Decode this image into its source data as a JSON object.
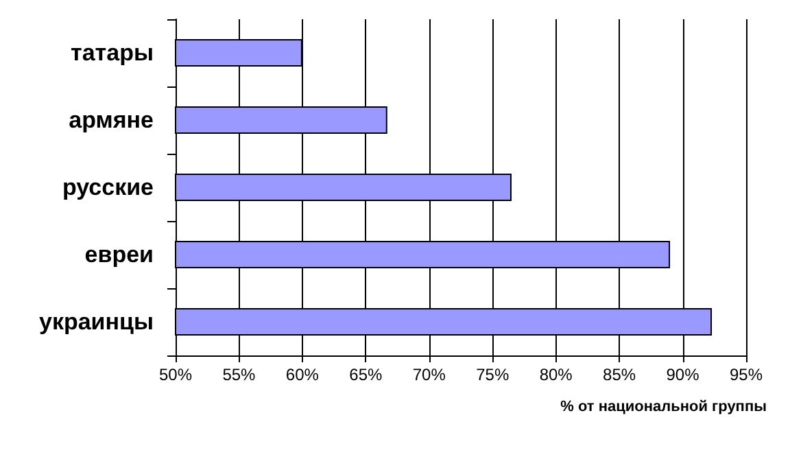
{
  "chart_data": {
    "type": "bar",
    "orientation": "horizontal",
    "categories": [
      "татары",
      "армяне",
      "русские",
      "евреи",
      "украинцы"
    ],
    "values": [
      60,
      66.7,
      76.5,
      89,
      92.3
    ],
    "color": "#9999ff",
    "xlim": [
      50,
      95
    ],
    "xticks": [
      {
        "value": 50,
        "label": "50%"
      },
      {
        "value": 55,
        "label": "55%"
      },
      {
        "value": 60,
        "label": "60%"
      },
      {
        "value": 65,
        "label": "65%"
      },
      {
        "value": 70,
        "label": "70%"
      },
      {
        "value": 75,
        "label": "75%"
      },
      {
        "value": 80,
        "label": "80%"
      },
      {
        "value": 85,
        "label": "85%"
      },
      {
        "value": 90,
        "label": "90%"
      },
      {
        "value": 95,
        "label": "95%"
      }
    ],
    "xlabel": "% от национальной группы",
    "grid": "x"
  }
}
